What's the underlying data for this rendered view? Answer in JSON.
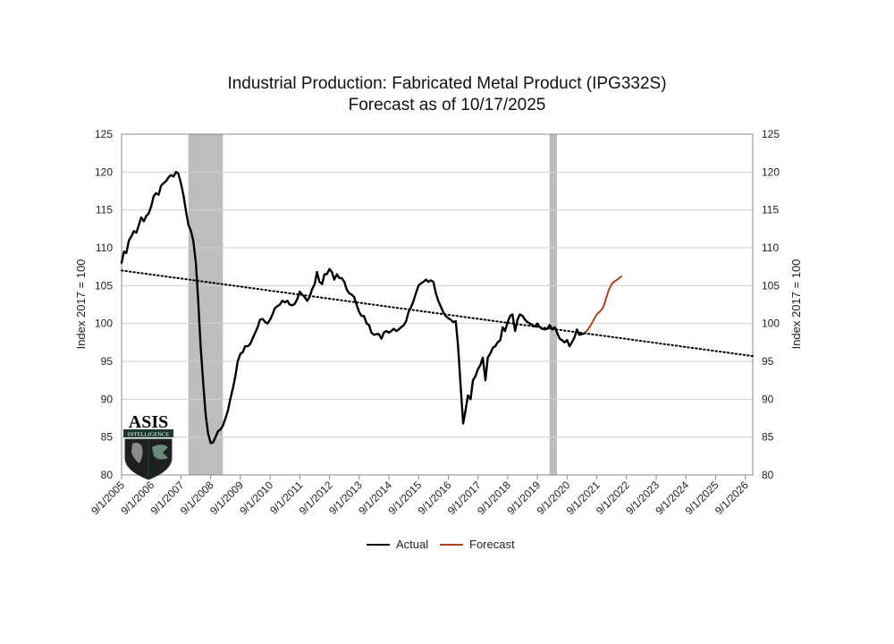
{
  "chart_data": {
    "type": "line",
    "title": "Industrial Production: Fabricated Metal Product (IPG332S)",
    "subtitle": "Forecast as of 10/17/2025",
    "ylabel_left": "Index 2017 = 100",
    "ylabel_right": "Index 2017 = 100",
    "ylim": [
      80,
      125
    ],
    "yticks": [
      80,
      85,
      90,
      95,
      100,
      105,
      110,
      115,
      120,
      125
    ],
    "xlim": [
      2005.67,
      2026.92
    ],
    "xticks": [
      {
        "value": 2005.67,
        "label": "9/1/2005"
      },
      {
        "value": 2006.67,
        "label": "9/1/2006"
      },
      {
        "value": 2007.67,
        "label": "9/1/2007"
      },
      {
        "value": 2008.67,
        "label": "9/1/2008"
      },
      {
        "value": 2009.67,
        "label": "9/1/2009"
      },
      {
        "value": 2010.67,
        "label": "9/1/2010"
      },
      {
        "value": 2011.67,
        "label": "9/1/2011"
      },
      {
        "value": 2012.67,
        "label": "9/1/2012"
      },
      {
        "value": 2013.67,
        "label": "9/1/2013"
      },
      {
        "value": 2014.67,
        "label": "9/1/2014"
      },
      {
        "value": 2015.67,
        "label": "9/1/2015"
      },
      {
        "value": 2016.67,
        "label": "9/1/2016"
      },
      {
        "value": 2017.67,
        "label": "9/1/2017"
      },
      {
        "value": 2018.67,
        "label": "9/1/2018"
      },
      {
        "value": 2019.67,
        "label": "9/1/2019"
      },
      {
        "value": 2020.67,
        "label": "9/1/2020"
      },
      {
        "value": 2021.67,
        "label": "9/1/2021"
      },
      {
        "value": 2022.67,
        "label": "9/1/2022"
      },
      {
        "value": 2023.67,
        "label": "9/1/2023"
      },
      {
        "value": 2024.67,
        "label": "9/1/2024"
      },
      {
        "value": 2025.67,
        "label": "9/1/2025"
      },
      {
        "value": 2026.67,
        "label": "9/1/2026"
      }
    ],
    "grid": {
      "horizontal": true,
      "vertical": false
    },
    "legend_placement": "bottom-center",
    "recessions": [
      {
        "start": 2007.92,
        "end": 2009.08
      },
      {
        "start": 2020.08,
        "end": 2020.33
      }
    ],
    "series": [
      {
        "name": "Actual",
        "color": "#000000",
        "points": [
          [
            2005.67,
            108
          ],
          [
            2005.75,
            109.5
          ],
          [
            2005.83,
            109.3
          ],
          [
            2005.92,
            111
          ],
          [
            2006.0,
            111.5
          ],
          [
            2006.08,
            112.2
          ],
          [
            2006.17,
            112
          ],
          [
            2006.25,
            113
          ],
          [
            2006.33,
            114
          ],
          [
            2006.42,
            113.5
          ],
          [
            2006.5,
            114.2
          ],
          [
            2006.58,
            114.5
          ],
          [
            2006.67,
            115.5
          ],
          [
            2006.75,
            116.8
          ],
          [
            2006.83,
            117.2
          ],
          [
            2006.92,
            117
          ],
          [
            2007.0,
            118.2
          ],
          [
            2007.08,
            118.5
          ],
          [
            2007.17,
            118.8
          ],
          [
            2007.25,
            119.3
          ],
          [
            2007.33,
            119.6
          ],
          [
            2007.42,
            119.4
          ],
          [
            2007.5,
            120
          ],
          [
            2007.58,
            119.8
          ],
          [
            2007.67,
            118.5
          ],
          [
            2007.75,
            117
          ],
          [
            2007.83,
            115
          ],
          [
            2007.92,
            113
          ],
          [
            2008.0,
            112.3
          ],
          [
            2008.08,
            111
          ],
          [
            2008.17,
            108
          ],
          [
            2008.25,
            103
          ],
          [
            2008.33,
            97
          ],
          [
            2008.42,
            92
          ],
          [
            2008.5,
            88
          ],
          [
            2008.58,
            85.5
          ],
          [
            2008.67,
            84.2
          ],
          [
            2008.75,
            84.3
          ],
          [
            2008.83,
            85
          ],
          [
            2008.92,
            85.8
          ],
          [
            2009.0,
            86
          ],
          [
            2009.08,
            86.5
          ],
          [
            2009.17,
            87.5
          ],
          [
            2009.25,
            88.5
          ],
          [
            2009.33,
            90
          ],
          [
            2009.42,
            91.5
          ],
          [
            2009.5,
            93
          ],
          [
            2009.58,
            95
          ],
          [
            2009.67,
            96
          ],
          [
            2009.75,
            96.2
          ],
          [
            2009.83,
            97
          ],
          [
            2009.92,
            97
          ],
          [
            2010.0,
            97.3
          ],
          [
            2010.08,
            98
          ],
          [
            2010.17,
            98.8
          ],
          [
            2010.25,
            99.5
          ],
          [
            2010.33,
            100.5
          ],
          [
            2010.42,
            100.6
          ],
          [
            2010.5,
            100.2
          ],
          [
            2010.58,
            100
          ],
          [
            2010.67,
            100.5
          ],
          [
            2010.75,
            101.2
          ],
          [
            2010.83,
            102
          ],
          [
            2010.92,
            102.3
          ],
          [
            2011.0,
            102.5
          ],
          [
            2011.08,
            103
          ],
          [
            2011.17,
            102.8
          ],
          [
            2011.25,
            103
          ],
          [
            2011.33,
            102.5
          ],
          [
            2011.42,
            102.4
          ],
          [
            2011.5,
            102.6
          ],
          [
            2011.58,
            103.2
          ],
          [
            2011.67,
            104.2
          ],
          [
            2011.75,
            103.8
          ],
          [
            2011.83,
            103.5
          ],
          [
            2011.92,
            103
          ],
          [
            2012.0,
            103.5
          ],
          [
            2012.08,
            104.5
          ],
          [
            2012.17,
            105.2
          ],
          [
            2012.25,
            106.8
          ],
          [
            2012.33,
            105.5
          ],
          [
            2012.42,
            105.2
          ],
          [
            2012.5,
            106.5
          ],
          [
            2012.58,
            106.5
          ],
          [
            2012.67,
            107.2
          ],
          [
            2012.75,
            106.8
          ],
          [
            2012.83,
            105.8
          ],
          [
            2012.92,
            106.5
          ],
          [
            2013.0,
            106
          ],
          [
            2013.08,
            106
          ],
          [
            2013.17,
            105.5
          ],
          [
            2013.25,
            104.5
          ],
          [
            2013.33,
            104
          ],
          [
            2013.42,
            103.8
          ],
          [
            2013.5,
            103.5
          ],
          [
            2013.58,
            102.5
          ],
          [
            2013.67,
            101.5
          ],
          [
            2013.75,
            101
          ],
          [
            2013.83,
            101
          ],
          [
            2013.92,
            100
          ],
          [
            2014.0,
            99.8
          ],
          [
            2014.08,
            98.8
          ],
          [
            2014.17,
            98.5
          ],
          [
            2014.25,
            98.6
          ],
          [
            2014.33,
            98.6
          ],
          [
            2014.42,
            98
          ],
          [
            2014.5,
            98.8
          ],
          [
            2014.58,
            99
          ],
          [
            2014.67,
            98.8
          ],
          [
            2014.75,
            99
          ],
          [
            2014.83,
            99.3
          ],
          [
            2014.92,
            99
          ],
          [
            2015.0,
            99.2
          ],
          [
            2015.08,
            99.5
          ],
          [
            2015.17,
            99.8
          ],
          [
            2015.25,
            100.3
          ],
          [
            2015.33,
            101.5
          ],
          [
            2015.42,
            102.2
          ],
          [
            2015.5,
            103
          ],
          [
            2015.58,
            104
          ],
          [
            2015.67,
            105
          ],
          [
            2015.75,
            105.3
          ],
          [
            2015.83,
            105.5
          ],
          [
            2015.92,
            105.8
          ],
          [
            2016.0,
            105.5
          ],
          [
            2016.08,
            105.7
          ],
          [
            2016.17,
            105.5
          ],
          [
            2016.25,
            104
          ],
          [
            2016.33,
            103
          ],
          [
            2016.42,
            102.2
          ],
          [
            2016.5,
            101.5
          ],
          [
            2016.58,
            101
          ],
          [
            2016.67,
            100.7
          ],
          [
            2016.75,
            100.5
          ],
          [
            2016.83,
            100.2
          ],
          [
            2016.92,
            100.3
          ],
          [
            2017.0,
            97
          ],
          [
            2017.08,
            92
          ],
          [
            2017.17,
            86.8
          ],
          [
            2017.25,
            88.5
          ],
          [
            2017.33,
            90.5
          ],
          [
            2017.42,
            90
          ],
          [
            2017.5,
            92.5
          ],
          [
            2017.58,
            93
          ],
          [
            2017.67,
            94
          ],
          [
            2017.75,
            94.5
          ],
          [
            2017.83,
            95.5
          ],
          [
            2017.92,
            92.5
          ],
          [
            2018.0,
            95.5
          ],
          [
            2018.08,
            96
          ],
          [
            2018.17,
            96.8
          ],
          [
            2018.25,
            97
          ],
          [
            2018.33,
            97.5
          ],
          [
            2018.42,
            97.8
          ],
          [
            2018.5,
            99.5
          ],
          [
            2018.58,
            99
          ],
          [
            2018.67,
            100.2
          ],
          [
            2018.75,
            101
          ],
          [
            2018.83,
            101.2
          ],
          [
            2018.92,
            99
          ],
          [
            2019.0,
            100.5
          ],
          [
            2019.08,
            101.2
          ],
          [
            2019.17,
            101
          ],
          [
            2019.25,
            100.5
          ],
          [
            2019.33,
            100.2
          ],
          [
            2019.42,
            100
          ],
          [
            2019.5,
            99.8
          ],
          [
            2019.58,
            99.6
          ],
          [
            2019.67,
            100
          ],
          [
            2019.75,
            99.5
          ],
          [
            2019.83,
            99.3
          ],
          [
            2019.92,
            99.2
          ],
          [
            2020.0,
            99.3
          ],
          [
            2020.08,
            99.8
          ],
          [
            2020.17,
            99.2
          ],
          [
            2020.25,
            99.5
          ],
          [
            2020.33,
            98.8
          ],
          [
            2020.42,
            98
          ],
          [
            2020.5,
            97.8
          ],
          [
            2020.58,
            97.5
          ],
          [
            2020.67,
            97.8
          ],
          [
            2020.75,
            97
          ],
          [
            2020.83,
            97.5
          ],
          [
            2020.92,
            98.2
          ],
          [
            2021.0,
            99.2
          ],
          [
            2021.08,
            98.5
          ],
          [
            2021.17,
            98.6
          ],
          [
            2021.25,
            98.7
          ]
        ]
      },
      {
        "name": "Forecast",
        "color": "#b2401e",
        "points": [
          [
            2021.25,
            98.7
          ],
          [
            2021.33,
            99
          ],
          [
            2021.42,
            99.5
          ],
          [
            2021.5,
            100
          ],
          [
            2021.58,
            100.6
          ],
          [
            2021.67,
            101.2
          ],
          [
            2021.75,
            101.5
          ],
          [
            2021.83,
            101.8
          ],
          [
            2021.92,
            102.5
          ],
          [
            2022.0,
            103.5
          ],
          [
            2022.08,
            104.5
          ],
          [
            2022.17,
            105.2
          ],
          [
            2022.25,
            105.5
          ],
          [
            2022.33,
            105.7
          ],
          [
            2022.42,
            106
          ],
          [
            2022.5,
            106.2
          ]
        ]
      },
      {
        "name": "",
        "style": "dotted-trend",
        "color": "#000000",
        "points": [
          [
            2005.67,
            107
          ],
          [
            2026.92,
            95.7
          ]
        ]
      }
    ]
  },
  "legend": {
    "actual": "Actual",
    "forecast": "Forecast"
  },
  "logo": {
    "text": "ASIS",
    "subtext": "INTELLIGENCE"
  }
}
